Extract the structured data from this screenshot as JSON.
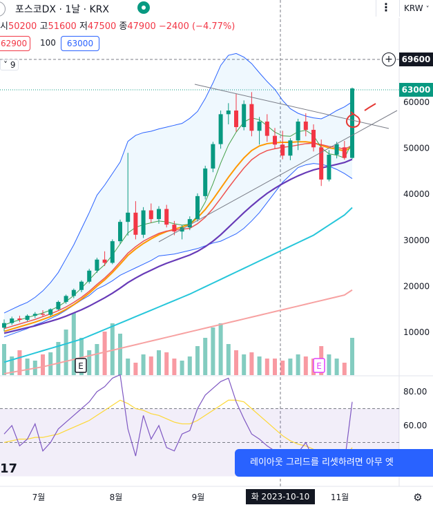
{
  "header": {
    "title": "포스코DX · 1날 · KRX",
    "more_label": "⋮",
    "currency_label": "KRW"
  },
  "ohlc": {
    "open_label": "시",
    "open_value": "50200",
    "high_label": "고",
    "high_value": "51600",
    "low_label": "저",
    "low_value": "47500",
    "close_label": "종",
    "close_value": "47900",
    "change": "−2400 (−4.77%)"
  },
  "quote": {
    "sell": "62900",
    "spread": "100",
    "buy": "63000"
  },
  "indicator_toggle": {
    "arrow": "˅",
    "count": "9"
  },
  "price_tags": {
    "crosshair": "69600",
    "last": "63000"
  },
  "toast": {
    "text": "레이아웃 그리드를 리셋하려면 아무 엣"
  },
  "logo": "17",
  "date_badge": "화 2023-10-10",
  "colors": {
    "up": "#089981",
    "down": "#f23645",
    "accent": "#2962ff"
  },
  "chart_data": {
    "type": "line",
    "price_axis": {
      "ticks": [
        "60000",
        "50000",
        "40000",
        "30000",
        "20000",
        "10000"
      ],
      "ylim": [
        0,
        72000
      ]
    },
    "rsi_axis": {
      "ticks": [
        "80.00",
        "60.00"
      ],
      "ylim": [
        0,
        100
      ],
      "band": [
        30,
        70
      ]
    },
    "time_labels": [
      "7월",
      "8월",
      "9월",
      "11월"
    ],
    "event_markers": [
      "E",
      "E"
    ],
    "candles": [
      [
        11000,
        12800,
        10200,
        12000
      ],
      [
        12000,
        13400,
        11600,
        13000
      ],
      [
        13000,
        13600,
        12200,
        12700
      ],
      [
        12700,
        13900,
        12400,
        13600
      ],
      [
        13600,
        14400,
        13100,
        14000
      ],
      [
        14000,
        14800,
        13400,
        13800
      ],
      [
        13800,
        15200,
        13500,
        15000
      ],
      [
        15000,
        16900,
        14800,
        16600
      ],
      [
        16600,
        18200,
        16200,
        17900
      ],
      [
        17900,
        19500,
        17400,
        19200
      ],
      [
        19200,
        21300,
        18700,
        21000
      ],
      [
        21000,
        23800,
        20600,
        23400
      ],
      [
        23400,
        26200,
        22900,
        25800
      ],
      [
        25800,
        27600,
        24400,
        25100
      ],
      [
        25100,
        30200,
        24800,
        29800
      ],
      [
        29800,
        34500,
        29200,
        34000
      ],
      [
        34000,
        49000,
        31000,
        36000
      ],
      [
        36000,
        38500,
        30200,
        31200
      ],
      [
        31200,
        37200,
        30500,
        36500
      ],
      [
        36500,
        38000,
        33800,
        34600
      ],
      [
        34600,
        37400,
        33600,
        36800
      ],
      [
        36800,
        37700,
        32800,
        33400
      ],
      [
        33400,
        34200,
        31100,
        31900
      ],
      [
        31900,
        33300,
        30200,
        32800
      ],
      [
        32800,
        35200,
        32200,
        34600
      ],
      [
        34600,
        40200,
        34100,
        39600
      ],
      [
        39600,
        46200,
        38900,
        45600
      ],
      [
        45600,
        51400,
        44800,
        50900
      ],
      [
        50900,
        58200,
        49900,
        57400
      ],
      [
        57400,
        59800,
        55200,
        58200
      ],
      [
        58200,
        61800,
        53600,
        54600
      ],
      [
        54600,
        60400,
        53900,
        59600
      ],
      [
        59600,
        62200,
        52600,
        53800
      ],
      [
        53800,
        56800,
        50800,
        55800
      ],
      [
        55800,
        57400,
        51400,
        52700
      ],
      [
        52700,
        54400,
        49800,
        50800
      ],
      [
        50800,
        53800,
        47600,
        48400
      ],
      [
        48400,
        52200,
        47400,
        51700
      ],
      [
        51700,
        56400,
        49600,
        55800
      ],
      [
        55800,
        57600,
        52600,
        54000
      ],
      [
        54000,
        55200,
        49300,
        50200
      ],
      [
        50200,
        51900,
        41800,
        43200
      ],
      [
        43200,
        49600,
        42800,
        48600
      ],
      [
        48600,
        51400,
        47800,
        50900
      ],
      [
        50200,
        51600,
        47500,
        47900
      ],
      [
        47900,
        63200,
        47700,
        63000
      ]
    ],
    "volumes": [
      15,
      9,
      12,
      8,
      7,
      10,
      11,
      16,
      22,
      30,
      18,
      12,
      15,
      21,
      25,
      20,
      8,
      6,
      10,
      9,
      12,
      11,
      8,
      7,
      9,
      14,
      18,
      23,
      25,
      15,
      12,
      10,
      11,
      9,
      8,
      8,
      7,
      8,
      10,
      9,
      8,
      14,
      10,
      8,
      6,
      18
    ],
    "bb_upper": [
      14200,
      15000,
      15800,
      16500,
      17600,
      19000,
      20800,
      23000,
      26000,
      29000,
      32500,
      36000,
      39800,
      42000,
      44500,
      47000,
      51500,
      52800,
      53400,
      53700,
      54200,
      54600,
      55000,
      55400,
      56500,
      58000,
      60800,
      64200,
      68000,
      70200,
      70600,
      69800,
      68400,
      66400,
      64500,
      62800,
      60400,
      58600,
      57600,
      57000,
      56600,
      56400,
      57200,
      58200,
      59000,
      60100
    ],
    "bb_lower": [
      9000,
      9600,
      10200,
      10800,
      11600,
      12200,
      13000,
      13800,
      14800,
      15900,
      17000,
      18000,
      19400,
      20200,
      21200,
      22400,
      23200,
      24000,
      24800,
      25600,
      26600,
      26800,
      27000,
      27400,
      27800,
      28200,
      28800,
      29400,
      29800,
      30600,
      31400,
      32600,
      34200,
      36000,
      38200,
      40400,
      42600,
      44200,
      45800,
      46400,
      46700,
      46500,
      46100,
      45400,
      44500,
      43400
    ],
    "ma_short": [
      11600,
      12200,
      12700,
      13200,
      13700,
      14200,
      14800,
      15600,
      16700,
      18000,
      19600,
      21400,
      23200,
      24700,
      26800,
      29200,
      31600,
      32800,
      33400,
      33800,
      34200,
      34000,
      33600,
      33300,
      33500,
      35300,
      38300,
      42300,
      46800,
      50700,
      53500,
      55700,
      56600,
      56200,
      54900,
      53500,
      52700,
      52600,
      53600,
      53900,
      52800,
      50100,
      48800,
      48500,
      47900,
      51300
    ],
    "ma_mid": [
      10800,
      11300,
      11800,
      12300,
      12800,
      13400,
      14000,
      14700,
      15500,
      16500,
      17600,
      18900,
      20400,
      21800,
      23400,
      25300,
      27200,
      28600,
      29800,
      30700,
      31500,
      32000,
      32200,
      32400,
      32600,
      33600,
      35000,
      36900,
      39100,
      41400,
      43600,
      45700,
      47500,
      48700,
      49500,
      49900,
      50200,
      50400,
      50700,
      51000,
      51100,
      50800,
      50400,
      50200,
      49800,
      50600
    ],
    "ma_long": [
      9800,
      10200,
      10600,
      11000,
      11400,
      11900,
      12400,
      12900,
      13500,
      14200,
      14900,
      15700,
      16600,
      17500,
      18500,
      19600,
      20800,
      21800,
      22700,
      23500,
      24300,
      25000,
      25600,
      26200,
      26800,
      27600,
      28600,
      29800,
      31200,
      32800,
      34400,
      36000,
      37500,
      38900,
      40200,
      41300,
      42300,
      43200,
      44000,
      44700,
      45300,
      45700,
      46100,
      46500,
      46900,
      47600
    ],
    "ma_orange": [
      10200,
      10700,
      11200,
      11700,
      12200,
      12800,
      13400,
      14100,
      15000,
      16000,
      17200,
      18500,
      20000,
      21400,
      23000,
      24800,
      26700,
      28100,
      29300,
      30300,
      31200,
      31900,
      32400,
      32900,
      33500,
      34900,
      36700,
      38900,
      41300,
      43700,
      45900,
      47900,
      49500,
      50500,
      51000,
      51200,
      51300,
      51300,
      51400,
      51400,
      51200,
      50600,
      50100,
      49800,
      49400,
      50300
    ],
    "ma_teal": [
      3500,
      4000,
      4500,
      5000,
      5500,
      6000,
      6500,
      7000,
      7500,
      8000,
      8500,
      9200,
      9900,
      10600,
      11300,
      12000,
      12700,
      13400,
      14100,
      14800,
      15500,
      16200,
      16900,
      17600,
      18300,
      19100,
      19900,
      20700,
      21500,
      22300,
      23100,
      23900,
      24700,
      25500,
      26300,
      27100,
      27900,
      28700,
      29500,
      30300,
      31100,
      32200,
      33300,
      34400,
      35500,
      37100
    ],
    "ma_pink": [
      1000,
      1300,
      1600,
      1900,
      2200,
      2500,
      2900,
      3300,
      3700,
      4100,
      4500,
      4900,
      5300,
      5700,
      6100,
      6500,
      6900,
      7300,
      7700,
      8100,
      8500,
      8900,
      9300,
      9700,
      10100,
      10500,
      10900,
      11300,
      11700,
      12100,
      12500,
      12900,
      13300,
      13700,
      14100,
      14500,
      14900,
      15300,
      15700,
      16100,
      16500,
      16900,
      17300,
      17700,
      18100,
      19200
    ],
    "rsi": [
      55,
      60,
      48,
      52,
      61,
      45,
      50,
      58,
      62,
      66,
      70,
      74,
      80,
      83,
      88,
      90,
      58,
      42,
      66,
      52,
      60,
      47,
      45,
      55,
      57,
      70,
      78,
      82,
      86,
      88,
      74,
      64,
      55,
      52,
      48,
      45,
      38,
      37,
      44,
      50,
      40,
      32,
      41,
      45,
      38,
      74
    ],
    "rsi_ma": [
      50,
      51,
      52,
      52,
      53,
      53,
      54,
      55,
      57,
      59,
      61,
      63,
      66,
      69,
      72,
      75,
      73,
      70,
      69,
      67,
      66,
      64,
      62,
      61,
      61,
      63,
      66,
      69,
      72,
      75,
      75,
      74,
      70,
      66,
      62,
      58,
      54,
      51,
      49,
      48,
      46,
      44,
      43,
      42,
      41,
      47
    ]
  }
}
